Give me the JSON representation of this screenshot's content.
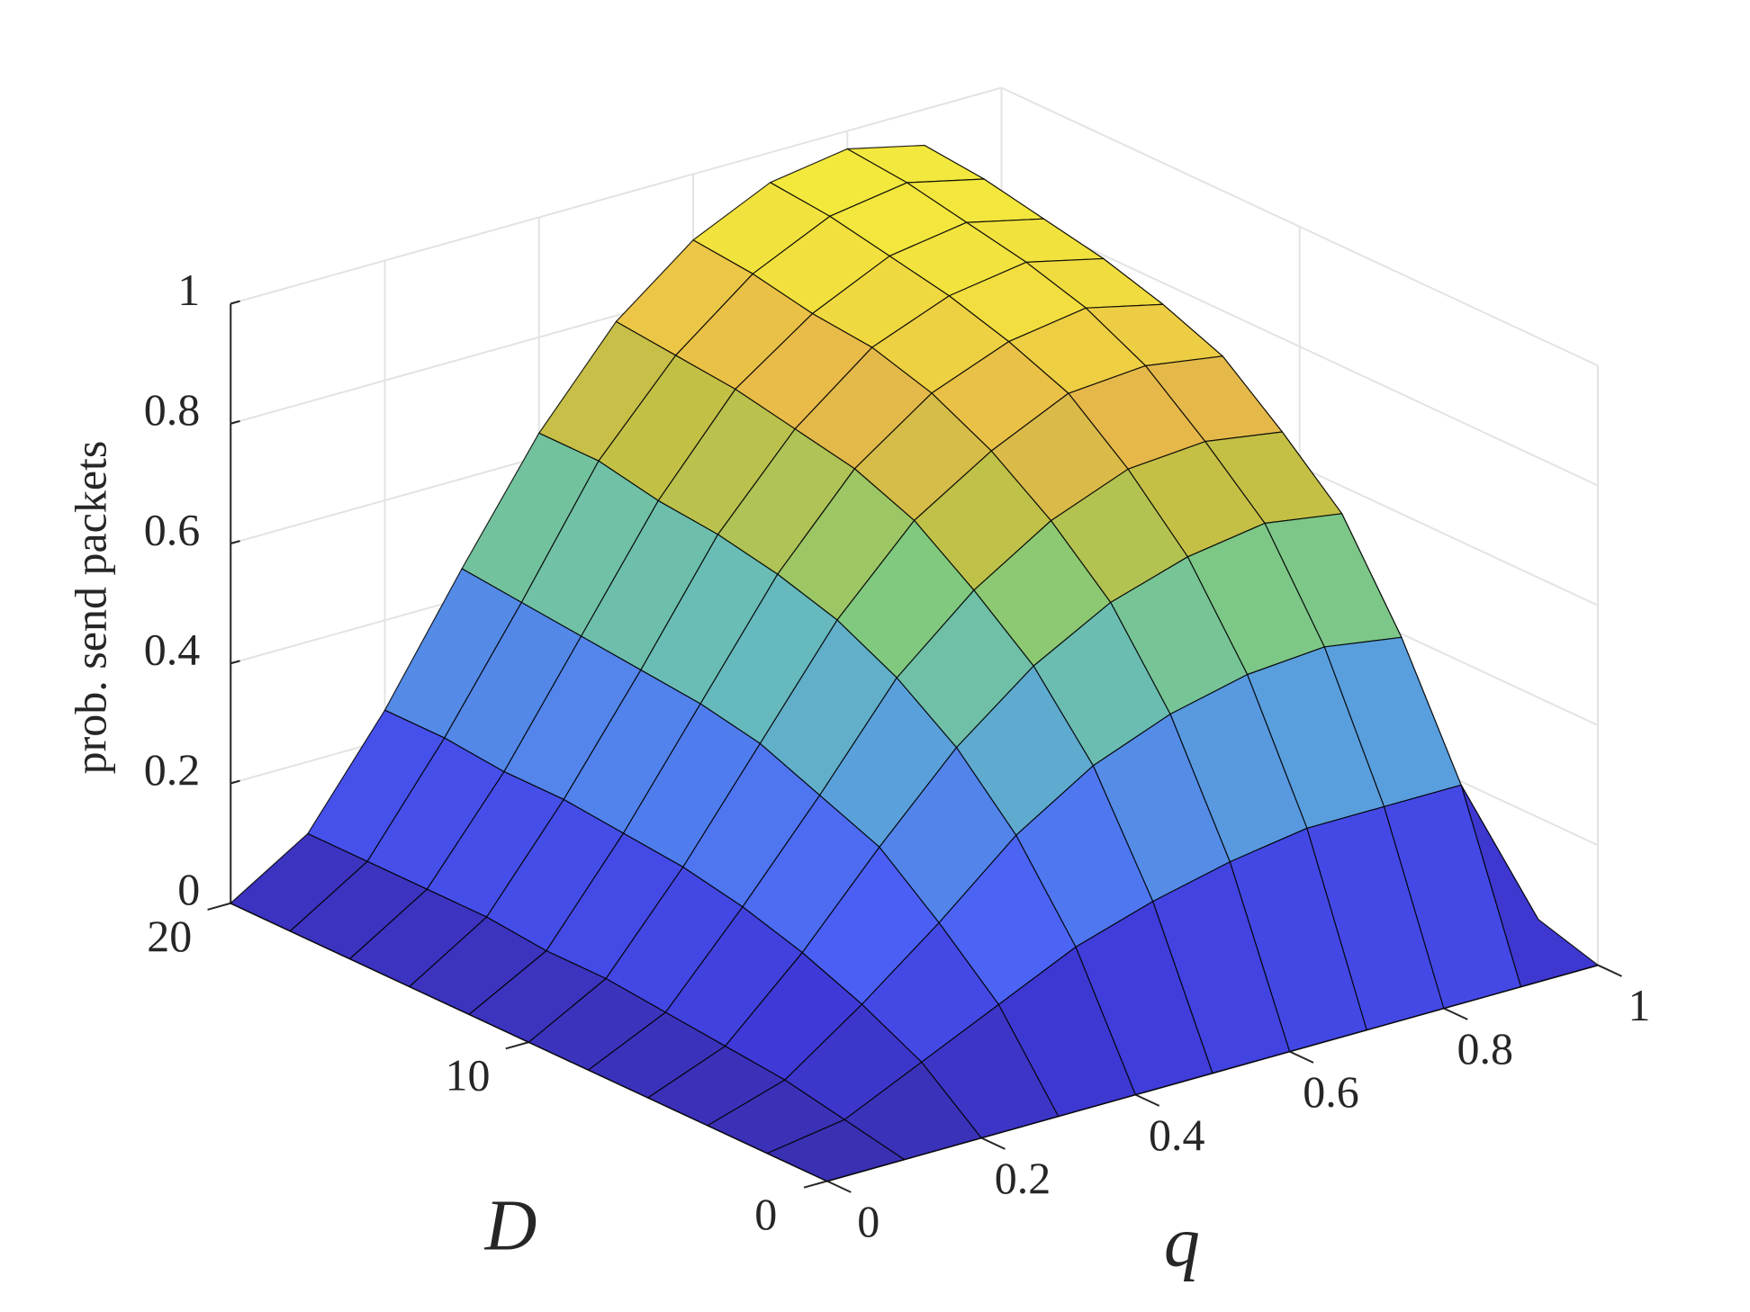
{
  "chart_data": {
    "type": "surface",
    "zlabel": "prob. send packets",
    "xlabel": "q",
    "ylabel": "D",
    "x": [
      0,
      0.1,
      0.2,
      0.3,
      0.4,
      0.5,
      0.6,
      0.7,
      0.8,
      0.9,
      1
    ],
    "y": [
      0,
      2,
      4,
      6,
      8,
      10,
      12,
      14,
      16,
      18,
      20
    ],
    "z": [
      [
        0,
        0,
        0,
        0,
        0,
        0,
        0,
        0,
        0,
        0,
        0
      ],
      [
        0,
        0.02,
        0.08,
        0.14,
        0.2,
        0.24,
        0.27,
        0.29,
        0.29,
        0.29,
        0.03
      ],
      [
        0,
        0.04,
        0.13,
        0.23,
        0.34,
        0.42,
        0.47,
        0.5,
        0.51,
        0.49,
        0.05
      ],
      [
        0,
        0.05,
        0.17,
        0.31,
        0.44,
        0.54,
        0.61,
        0.65,
        0.67,
        0.65,
        0.07
      ],
      [
        0,
        0.06,
        0.2,
        0.35,
        0.51,
        0.62,
        0.7,
        0.75,
        0.76,
        0.74,
        0.08
      ],
      [
        0,
        0.07,
        0.22,
        0.39,
        0.56,
        0.69,
        0.77,
        0.83,
        0.84,
        0.82,
        0.09
      ],
      [
        0,
        0.07,
        0.23,
        0.41,
        0.59,
        0.73,
        0.82,
        0.87,
        0.89,
        0.86,
        0.09
      ],
      [
        0,
        0.08,
        0.24,
        0.42,
        0.61,
        0.75,
        0.85,
        0.9,
        0.92,
        0.89,
        0.09
      ],
      [
        0,
        0.08,
        0.24,
        0.43,
        0.62,
        0.77,
        0.86,
        0.92,
        0.94,
        0.91,
        0.1
      ],
      [
        0,
        0.08,
        0.25,
        0.44,
        0.64,
        0.78,
        0.88,
        0.94,
        0.96,
        0.93,
        0.1
      ],
      [
        0,
        0.08,
        0.25,
        0.45,
        0.64,
        0.79,
        0.89,
        0.95,
        0.97,
        0.94,
        0.1
      ]
    ],
    "xlim": [
      0,
      1
    ],
    "ylim": [
      0,
      20
    ],
    "zlim": [
      0,
      1
    ],
    "xticks": [
      0,
      0.2,
      0.4,
      0.6,
      0.8,
      1
    ],
    "yticks": [
      0,
      10,
      20
    ],
    "zticks": [
      0,
      0.2,
      0.4,
      0.6,
      0.8,
      1
    ],
    "grid": true,
    "edgecolor": "#000000",
    "colormap": [
      "#3a2fb0",
      "#3f3ad8",
      "#4a5cf5",
      "#4f78f0",
      "#5aa0dc",
      "#68bcb8",
      "#82ca7c",
      "#c2c046",
      "#e8b84a",
      "#f2e03e",
      "#f4f03c"
    ]
  }
}
